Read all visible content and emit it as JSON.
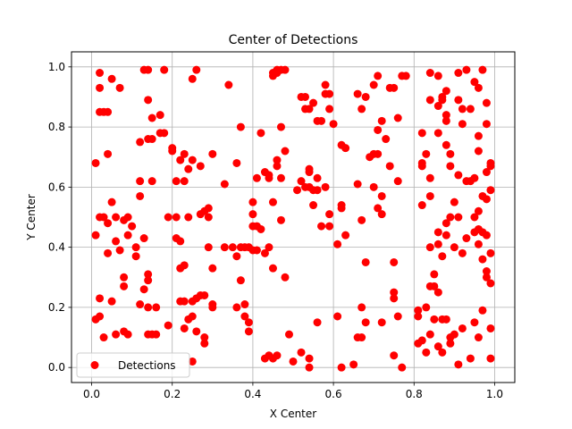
{
  "chart_data": {
    "type": "scatter",
    "title": "Center of Detections",
    "xlabel": "X Center",
    "ylabel": "Y Center",
    "xlim": [
      -0.05,
      1.05
    ],
    "ylim": [
      -0.05,
      1.05
    ],
    "xticks": [
      "0.0",
      "0.2",
      "0.4",
      "0.6",
      "0.8",
      "1.0"
    ],
    "yticks": [
      "0.0",
      "0.2",
      "0.4",
      "0.6",
      "0.8",
      "1.0"
    ],
    "grid": true,
    "legend_position": "lower-left",
    "series": [
      {
        "name": "Detections",
        "color": "#ff0000",
        "marker": "circle",
        "points": [
          [
            0.02,
            0.98
          ],
          [
            0.02,
            0.85
          ],
          [
            0.03,
            0.85
          ],
          [
            0.04,
            0.85
          ],
          [
            0.02,
            0.93
          ],
          [
            0.05,
            0.96
          ],
          [
            0.07,
            0.93
          ],
          [
            0.01,
            0.68
          ],
          [
            0.04,
            0.71
          ],
          [
            0.14,
            0.99
          ],
          [
            0.13,
            0.99
          ],
          [
            0.18,
            0.99
          ],
          [
            0.26,
            0.99
          ],
          [
            0.25,
            0.96
          ],
          [
            0.14,
            0.89
          ],
          [
            0.17,
            0.84
          ],
          [
            0.15,
            0.83
          ],
          [
            0.12,
            0.75
          ],
          [
            0.14,
            0.76
          ],
          [
            0.15,
            0.76
          ],
          [
            0.17,
            0.78
          ],
          [
            0.18,
            0.78
          ],
          [
            0.12,
            0.62
          ],
          [
            0.15,
            0.62
          ],
          [
            0.12,
            0.57
          ],
          [
            0.01,
            0.44
          ],
          [
            0.02,
            0.5
          ],
          [
            0.03,
            0.5
          ],
          [
            0.04,
            0.48
          ],
          [
            0.05,
            0.55
          ],
          [
            0.06,
            0.42
          ],
          [
            0.06,
            0.5
          ],
          [
            0.07,
            0.39
          ],
          [
            0.08,
            0.49
          ],
          [
            0.09,
            0.44
          ],
          [
            0.1,
            0.47
          ],
          [
            0.09,
            0.5
          ],
          [
            0.11,
            0.4
          ],
          [
            0.11,
            0.37
          ],
          [
            0.13,
            0.43
          ],
          [
            0.13,
            0.26
          ],
          [
            0.14,
            0.29
          ],
          [
            0.14,
            0.31
          ],
          [
            0.02,
            0.23
          ],
          [
            0.02,
            0.17
          ],
          [
            0.01,
            0.16
          ],
          [
            0.03,
            0.1
          ],
          [
            0.04,
            0.38
          ],
          [
            0.05,
            0.22
          ],
          [
            0.06,
            0.11
          ],
          [
            0.08,
            0.3
          ],
          [
            0.08,
            0.27
          ],
          [
            0.08,
            0.12
          ],
          [
            0.09,
            0.11
          ],
          [
            0.12,
            0.21
          ],
          [
            0.14,
            0.2
          ],
          [
            0.14,
            0.11
          ],
          [
            0.15,
            0.11
          ],
          [
            0.16,
            0.2
          ],
          [
            0.16,
            0.11
          ],
          [
            0.19,
            0.14
          ],
          [
            0.2,
            0.73
          ],
          [
            0.2,
            0.72
          ],
          [
            0.21,
            0.62
          ],
          [
            0.22,
            0.69
          ],
          [
            0.23,
            0.62
          ],
          [
            0.23,
            0.71
          ],
          [
            0.24,
            0.66
          ],
          [
            0.25,
            0.69
          ],
          [
            0.27,
            0.67
          ],
          [
            0.19,
            0.5
          ],
          [
            0.21,
            0.5
          ],
          [
            0.21,
            0.43
          ],
          [
            0.22,
            0.42
          ],
          [
            0.24,
            0.5
          ],
          [
            0.27,
            0.51
          ],
          [
            0.28,
            0.52
          ],
          [
            0.29,
            0.53
          ],
          [
            0.29,
            0.5
          ],
          [
            0.22,
            0.33
          ],
          [
            0.23,
            0.34
          ],
          [
            0.22,
            0.22
          ],
          [
            0.23,
            0.22
          ],
          [
            0.25,
            0.22
          ],
          [
            0.26,
            0.23
          ],
          [
            0.27,
            0.24
          ],
          [
            0.28,
            0.24
          ],
          [
            0.3,
            0.2
          ],
          [
            0.3,
            0.21
          ],
          [
            0.24,
            0.16
          ],
          [
            0.25,
            0.17
          ],
          [
            0.23,
            0.13
          ],
          [
            0.26,
            0.12
          ],
          [
            0.25,
            0.02
          ],
          [
            0.28,
            0.08
          ],
          [
            0.28,
            0.1
          ],
          [
            0.29,
            0.4
          ],
          [
            0.3,
            0.33
          ],
          [
            0.3,
            0.71
          ],
          [
            0.33,
            0.61
          ],
          [
            0.34,
            0.94
          ],
          [
            0.36,
            0.68
          ],
          [
            0.37,
            0.8
          ],
          [
            0.33,
            0.4
          ],
          [
            0.35,
            0.4
          ],
          [
            0.36,
            0.37
          ],
          [
            0.37,
            0.4
          ],
          [
            0.38,
            0.4
          ],
          [
            0.39,
            0.4
          ],
          [
            0.4,
            0.39
          ],
          [
            0.41,
            0.39
          ],
          [
            0.43,
            0.38
          ],
          [
            0.36,
            0.2
          ],
          [
            0.37,
            0.29
          ],
          [
            0.38,
            0.21
          ],
          [
            0.38,
            0.17
          ],
          [
            0.39,
            0.15
          ],
          [
            0.39,
            0.12
          ],
          [
            0.4,
            0.51
          ],
          [
            0.4,
            0.55
          ],
          [
            0.4,
            0.47
          ],
          [
            0.41,
            0.63
          ],
          [
            0.41,
            0.47
          ],
          [
            0.42,
            0.46
          ],
          [
            0.42,
            0.78
          ],
          [
            0.43,
            0.65
          ],
          [
            0.44,
            0.64
          ],
          [
            0.44,
            0.63
          ],
          [
            0.45,
            0.97
          ],
          [
            0.45,
            0.98
          ],
          [
            0.46,
            0.98
          ],
          [
            0.46,
            0.99
          ],
          [
            0.47,
            0.99
          ],
          [
            0.48,
            0.99
          ],
          [
            0.46,
            0.67
          ],
          [
            0.46,
            0.69
          ],
          [
            0.47,
            0.63
          ],
          [
            0.48,
            0.72
          ],
          [
            0.47,
            0.8
          ],
          [
            0.47,
            0.49
          ],
          [
            0.45,
            0.55
          ],
          [
            0.44,
            0.4
          ],
          [
            0.45,
            0.33
          ],
          [
            0.48,
            0.3
          ],
          [
            0.49,
            0.11
          ],
          [
            0.43,
            0.03
          ],
          [
            0.44,
            0.04
          ],
          [
            0.45,
            0.03
          ],
          [
            0.46,
            0.04
          ],
          [
            0.5,
            0.02
          ],
          [
            0.52,
            0.05
          ],
          [
            0.54,
            0.0
          ],
          [
            0.54,
            0.03
          ],
          [
            0.56,
            0.15
          ],
          [
            0.51,
            0.59
          ],
          [
            0.52,
            0.62
          ],
          [
            0.53,
            0.6
          ],
          [
            0.54,
            0.6
          ],
          [
            0.55,
            0.59
          ],
          [
            0.56,
            0.59
          ],
          [
            0.56,
            0.63
          ],
          [
            0.55,
            0.54
          ],
          [
            0.54,
            0.66
          ],
          [
            0.54,
            0.65
          ],
          [
            0.53,
            0.86
          ],
          [
            0.54,
            0.86
          ],
          [
            0.55,
            0.88
          ],
          [
            0.56,
            0.82
          ],
          [
            0.57,
            0.82
          ],
          [
            0.52,
            0.9
          ],
          [
            0.53,
            0.9
          ],
          [
            0.58,
            0.91
          ],
          [
            0.59,
            0.91
          ],
          [
            0.58,
            0.94
          ],
          [
            0.59,
            0.86
          ],
          [
            0.6,
            0.81
          ],
          [
            0.57,
            0.47
          ],
          [
            0.59,
            0.47
          ],
          [
            0.58,
            0.6
          ],
          [
            0.59,
            0.51
          ],
          [
            0.61,
            0.41
          ],
          [
            0.62,
            0.53
          ],
          [
            0.62,
            0.54
          ],
          [
            0.63,
            0.44
          ],
          [
            0.62,
            0.74
          ],
          [
            0.63,
            0.73
          ],
          [
            0.62,
            0.0
          ],
          [
            0.61,
            0.17
          ],
          [
            0.65,
            0.01
          ],
          [
            0.66,
            0.1
          ],
          [
            0.67,
            0.1
          ],
          [
            0.67,
            0.2
          ],
          [
            0.68,
            0.15
          ],
          [
            0.66,
            0.61
          ],
          [
            0.67,
            0.49
          ],
          [
            0.68,
            0.35
          ],
          [
            0.67,
            0.86
          ],
          [
            0.66,
            0.91
          ],
          [
            0.68,
            0.9
          ],
          [
            0.7,
            0.94
          ],
          [
            0.69,
            0.7
          ],
          [
            0.7,
            0.71
          ],
          [
            0.71,
            0.71
          ],
          [
            0.7,
            0.6
          ],
          [
            0.71,
            0.53
          ],
          [
            0.72,
            0.57
          ],
          [
            0.72,
            0.51
          ],
          [
            0.72,
            0.15
          ],
          [
            0.71,
            0.79
          ],
          [
            0.72,
            0.82
          ],
          [
            0.71,
            0.97
          ],
          [
            0.74,
            0.93
          ],
          [
            0.73,
            0.76
          ],
          [
            0.75,
            0.93
          ],
          [
            0.75,
            0.35
          ],
          [
            0.75,
            0.25
          ],
          [
            0.75,
            0.23
          ],
          [
            0.76,
            0.17
          ],
          [
            0.75,
            0.04
          ],
          [
            0.77,
            0.0
          ],
          [
            0.74,
            0.67
          ],
          [
            0.76,
            0.62
          ],
          [
            0.76,
            0.83
          ],
          [
            0.77,
            0.97
          ],
          [
            0.78,
            0.97
          ],
          [
            0.81,
            0.19
          ],
          [
            0.81,
            0.17
          ],
          [
            0.82,
            0.78
          ],
          [
            0.82,
            0.68
          ],
          [
            0.82,
            0.67
          ],
          [
            0.83,
            0.71
          ],
          [
            0.84,
            0.63
          ],
          [
            0.82,
            0.54
          ],
          [
            0.84,
            0.57
          ],
          [
            0.84,
            0.4
          ],
          [
            0.84,
            0.98
          ],
          [
            0.84,
            0.89
          ],
          [
            0.86,
            0.97
          ],
          [
            0.86,
            0.78
          ],
          [
            0.86,
            0.87
          ],
          [
            0.87,
            0.89
          ],
          [
            0.88,
            0.82
          ],
          [
            0.87,
            0.9
          ],
          [
            0.88,
            0.92
          ],
          [
            0.88,
            0.84
          ],
          [
            0.88,
            0.74
          ],
          [
            0.89,
            0.67
          ],
          [
            0.89,
            0.71
          ],
          [
            0.89,
            0.5
          ],
          [
            0.9,
            0.55
          ],
          [
            0.91,
            0.64
          ],
          [
            0.91,
            0.89
          ],
          [
            0.91,
            0.98
          ],
          [
            0.92,
            0.86
          ],
          [
            0.92,
            0.81
          ],
          [
            0.93,
            0.62
          ],
          [
            0.93,
            0.99
          ],
          [
            0.94,
            0.62
          ],
          [
            0.94,
            0.86
          ],
          [
            0.95,
            0.63
          ],
          [
            0.95,
            0.95
          ],
          [
            0.96,
            0.93
          ],
          [
            0.96,
            0.77
          ],
          [
            0.96,
            0.72
          ],
          [
            0.97,
            0.99
          ],
          [
            0.97,
            0.57
          ],
          [
            0.98,
            0.56
          ],
          [
            0.98,
            0.65
          ],
          [
            0.99,
            0.68
          ],
          [
            0.99,
            0.67
          ],
          [
            0.99,
            0.59
          ],
          [
            0.98,
            0.88
          ],
          [
            0.98,
            0.81
          ],
          [
            0.84,
            0.27
          ],
          [
            0.85,
            0.27
          ],
          [
            0.86,
            0.25
          ],
          [
            0.85,
            0.31
          ],
          [
            0.87,
            0.16
          ],
          [
            0.83,
            0.2
          ],
          [
            0.85,
            0.16
          ],
          [
            0.83,
            0.05
          ],
          [
            0.84,
            0.11
          ],
          [
            0.86,
            0.07
          ],
          [
            0.87,
            0.05
          ],
          [
            0.88,
            0.16
          ],
          [
            0.89,
            0.1
          ],
          [
            0.89,
            0.08
          ],
          [
            0.9,
            0.11
          ],
          [
            0.91,
            0.01
          ],
          [
            0.92,
            0.13
          ],
          [
            0.94,
            0.03
          ],
          [
            0.95,
            0.15
          ],
          [
            0.96,
            0.1
          ],
          [
            0.97,
            0.19
          ],
          [
            0.98,
            0.32
          ],
          [
            0.98,
            0.3
          ],
          [
            0.99,
            0.28
          ],
          [
            0.99,
            0.13
          ],
          [
            0.99,
            0.03
          ],
          [
            0.95,
            0.45
          ],
          [
            0.96,
            0.46
          ],
          [
            0.97,
            0.45
          ],
          [
            0.98,
            0.44
          ],
          [
            0.96,
            0.41
          ],
          [
            0.97,
            0.36
          ],
          [
            0.99,
            0.38
          ],
          [
            0.93,
            0.43
          ],
          [
            0.92,
            0.38
          ],
          [
            0.86,
            0.41
          ],
          [
            0.87,
            0.37
          ],
          [
            0.88,
            0.44
          ],
          [
            0.9,
            0.4
          ],
          [
            0.91,
            0.5
          ],
          [
            0.88,
            0.48
          ],
          [
            0.86,
            0.45
          ],
          [
            0.82,
            0.09
          ],
          [
            0.81,
            0.08
          ],
          [
            0.95,
            0.5
          ],
          [
            0.96,
            0.52
          ]
        ]
      }
    ]
  }
}
